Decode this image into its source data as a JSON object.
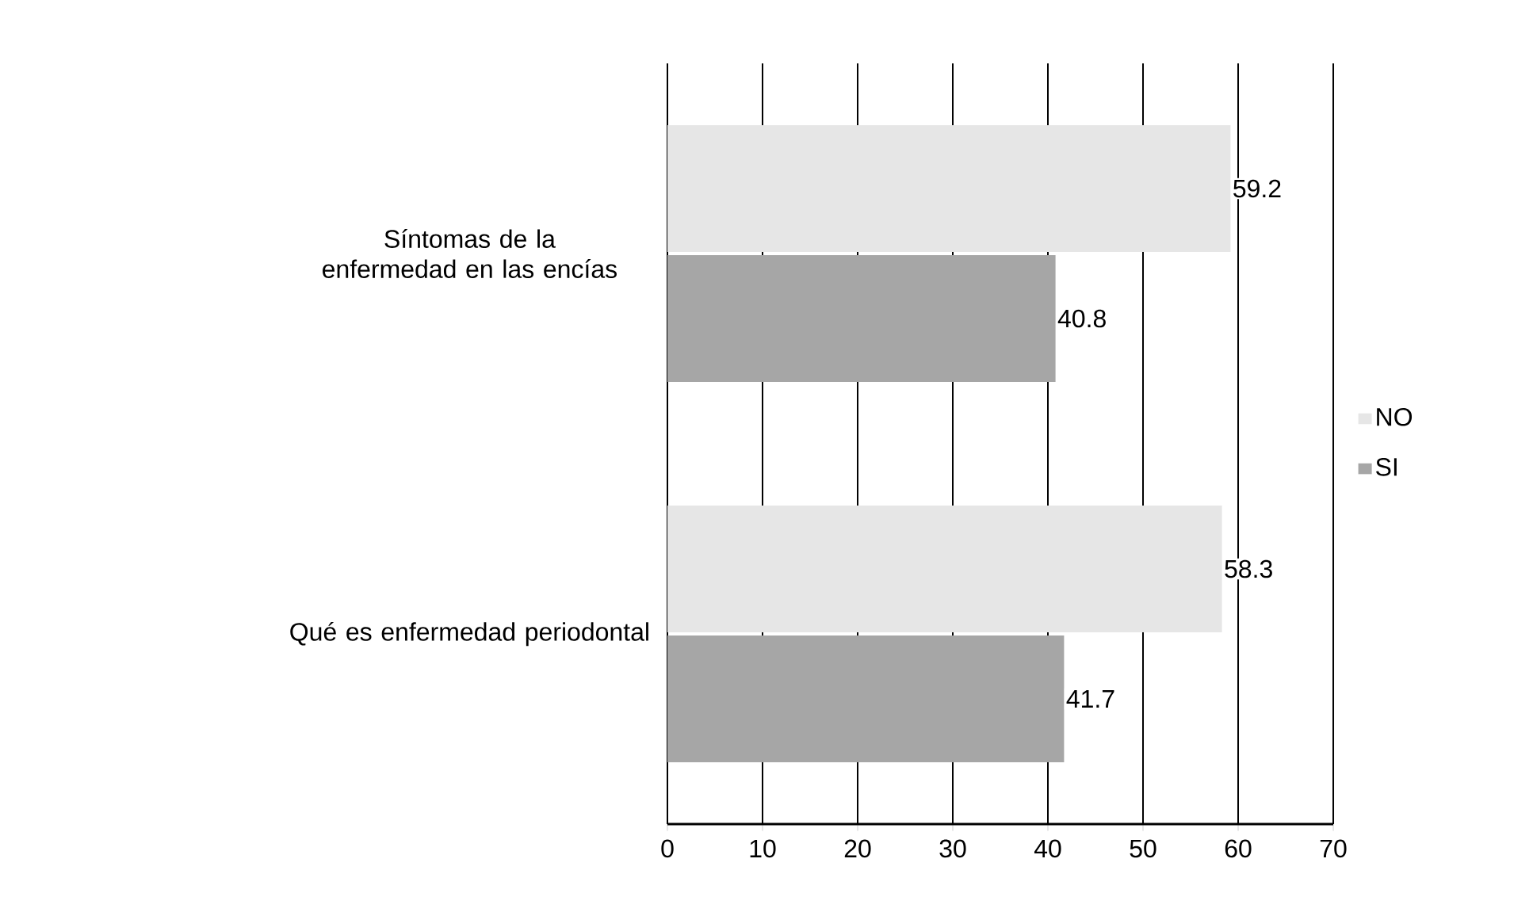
{
  "chart_data": {
    "type": "bar",
    "orientation": "horizontal",
    "categories": [
      "Síntomas de la enfermedad en las encías",
      "Qué es enfermedad periodontal"
    ],
    "series": [
      {
        "name": "NO",
        "color": "#e6e6e6",
        "values": [
          59.2,
          58.3
        ]
      },
      {
        "name": "SI",
        "color": "#a6a6a6",
        "values": [
          40.8,
          41.7
        ]
      }
    ],
    "xlim": [
      0,
      70
    ],
    "xticks": [
      0,
      10,
      20,
      30,
      40,
      50,
      60,
      70
    ],
    "grid": "x",
    "legend": "right",
    "data_labels": true
  }
}
